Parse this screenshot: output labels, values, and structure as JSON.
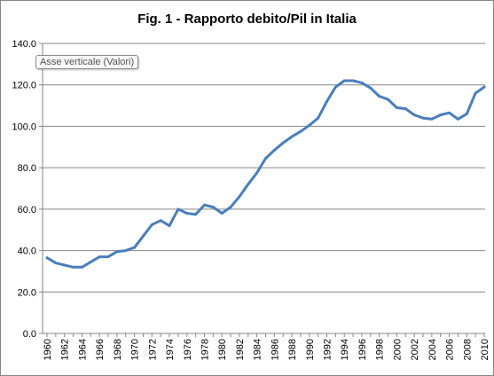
{
  "chart_data": {
    "type": "line",
    "title": "Fig. 1 - Rapporto debito/Pil in Italia",
    "xlabel": "",
    "ylabel": "",
    "ylim": [
      0,
      140
    ],
    "yticks": [
      "0.0",
      "20.0",
      "40.0",
      "60.0",
      "80.0",
      "100.0",
      "120.0",
      "140.0"
    ],
    "xticks": [
      "1960",
      "1962",
      "1964",
      "1966",
      "1968",
      "1970",
      "1972",
      "1974",
      "1976",
      "1978",
      "1980",
      "1982",
      "1984",
      "1986",
      "1988",
      "1990",
      "1992",
      "1994",
      "1996",
      "1998",
      "2000",
      "2002",
      "2004",
      "2006",
      "2008",
      "2010"
    ],
    "grid": true,
    "legend": "none",
    "line_color": "#4a7ebb",
    "x": [
      1960,
      1961,
      1962,
      1963,
      1964,
      1965,
      1966,
      1967,
      1968,
      1969,
      1970,
      1971,
      1972,
      1973,
      1974,
      1975,
      1976,
      1977,
      1978,
      1979,
      1980,
      1981,
      1982,
      1983,
      1984,
      1985,
      1986,
      1987,
      1988,
      1989,
      1990,
      1991,
      1992,
      1993,
      1994,
      1995,
      1996,
      1997,
      1998,
      1999,
      2000,
      2001,
      2002,
      2003,
      2004,
      2005,
      2006,
      2007,
      2008,
      2009,
      2010
    ],
    "series": [
      {
        "values": [
          36.5,
          34.0,
          33.0,
          32.0,
          32.0,
          34.5,
          37.0,
          37.0,
          39.5,
          40.0,
          41.5,
          47.0,
          52.5,
          54.5,
          52.0,
          60.0,
          58.0,
          57.5,
          62.0,
          61.0,
          58.0,
          61.0,
          66.0,
          72.0,
          77.5,
          84.5,
          88.5,
          92.0,
          95.0,
          97.5,
          100.5,
          104.0,
          112.0,
          119.0,
          122.0,
          122.0,
          121.0,
          118.5,
          114.5,
          113.0,
          109.0,
          108.5,
          105.5,
          104.0,
          103.5,
          105.5,
          106.5,
          103.5,
          106.0,
          116.0,
          119.0
        ]
      }
    ]
  },
  "tooltip": {
    "text": "Asse verticale (Valori)"
  }
}
